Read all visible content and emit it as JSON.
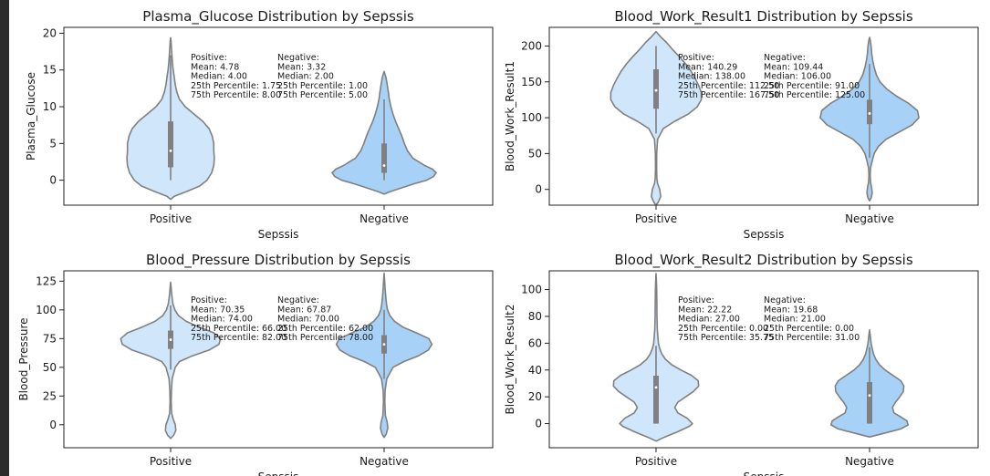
{
  "figure": {
    "background": "#ffffff"
  },
  "colors": {
    "positive": "#cfe6fb",
    "negative": "#a7d1f6",
    "outline": "#808080",
    "box": "#808080",
    "median": "#ffffff"
  },
  "chart_data": [
    {
      "type": "violin",
      "title": "Plasma_Glucose Distribution by Sepssis",
      "xlabel": "Sepssis",
      "ylabel": "Plasma_Glucose",
      "categories": [
        "Positive",
        "Negative"
      ],
      "ylim": [
        -3.4,
        20.8
      ],
      "yticks": [
        0,
        5,
        10,
        15,
        20
      ],
      "violins": [
        {
          "category": "Positive",
          "min": -2.6,
          "max": 19.4,
          "q1": 1.75,
          "median": 4.0,
          "q3": 8.0,
          "whisker_low": 0.0,
          "whisker_high": 17.0,
          "density": [
            [
              -2.6,
              0.0
            ],
            [
              -2.2,
              0.07
            ],
            [
              -1.5,
              0.32
            ],
            [
              -0.8,
              0.56
            ],
            [
              0,
              0.7
            ],
            [
              1,
              0.79
            ],
            [
              2,
              0.83
            ],
            [
              3,
              0.84
            ],
            [
              4,
              0.83
            ],
            [
              5,
              0.83
            ],
            [
              6,
              0.8
            ],
            [
              7,
              0.74
            ],
            [
              8,
              0.62
            ],
            [
              9,
              0.45
            ],
            [
              10,
              0.28
            ],
            [
              11,
              0.17
            ],
            [
              12,
              0.12
            ],
            [
              13,
              0.09
            ],
            [
              14,
              0.07
            ],
            [
              15,
              0.05
            ],
            [
              16,
              0.035
            ],
            [
              17,
              0.025
            ],
            [
              18,
              0.015
            ],
            [
              19,
              0.007
            ],
            [
              19.4,
              0.0
            ]
          ]
        },
        {
          "category": "Negative",
          "min": -1.9,
          "max": 14.8,
          "q1": 1.0,
          "median": 2.0,
          "q3": 5.0,
          "whisker_low": 0.0,
          "whisker_high": 11.0,
          "density": [
            [
              -1.9,
              0.0
            ],
            [
              -1.6,
              0.1
            ],
            [
              -1.0,
              0.35
            ],
            [
              -0.4,
              0.62
            ],
            [
              0,
              0.82
            ],
            [
              0.5,
              0.95
            ],
            [
              1,
              1.0
            ],
            [
              1.5,
              0.93
            ],
            [
              2,
              0.78
            ],
            [
              3,
              0.55
            ],
            [
              4,
              0.45
            ],
            [
              5,
              0.39
            ],
            [
              6,
              0.34
            ],
            [
              7,
              0.28
            ],
            [
              8,
              0.22
            ],
            [
              9,
              0.17
            ],
            [
              10,
              0.13
            ],
            [
              11,
              0.1
            ],
            [
              12,
              0.08
            ],
            [
              13,
              0.06
            ],
            [
              14,
              0.035
            ],
            [
              14.8,
              0.0
            ]
          ]
        }
      ],
      "annotations": {
        "positive": {
          "header": "Positive:",
          "lines": [
            "Mean: 4.78",
            "Median: 4.00",
            "25th Percentile: 1.75",
            "75th Percentile: 8.00"
          ]
        },
        "negative": {
          "header": "Negative:",
          "lines": [
            "Mean: 3.32",
            "Median: 2.00",
            "25th Percentile: 1.00",
            "75th Percentile: 5.00"
          ]
        }
      }
    },
    {
      "type": "violin",
      "title": "Blood_Work_Result1 Distribution by Sepssis",
      "xlabel": "Sepssis",
      "ylabel": "Blood_Work_Result1",
      "categories": [
        "Positive",
        "Negative"
      ],
      "ylim": [
        -22,
        226
      ],
      "yticks": [
        0,
        50,
        100,
        150,
        200
      ],
      "violins": [
        {
          "category": "Positive",
          "min": -22,
          "max": 220,
          "q1": 112.5,
          "median": 138.0,
          "q3": 167.5,
          "whisker_low": 78,
          "whisker_high": 200,
          "density": [
            [
              -22,
              0.0
            ],
            [
              -18,
              0.04
            ],
            [
              -10,
              0.09
            ],
            [
              0,
              0.07
            ],
            [
              8,
              0.03
            ],
            [
              15,
              0.015
            ],
            [
              30,
              0.01
            ],
            [
              50,
              0.012
            ],
            [
              70,
              0.03
            ],
            [
              85,
              0.14
            ],
            [
              95,
              0.36
            ],
            [
              105,
              0.62
            ],
            [
              115,
              0.79
            ],
            [
              125,
              0.87
            ],
            [
              135,
              0.87
            ],
            [
              145,
              0.82
            ],
            [
              155,
              0.75
            ],
            [
              165,
              0.67
            ],
            [
              175,
              0.57
            ],
            [
              185,
              0.45
            ],
            [
              195,
              0.32
            ],
            [
              205,
              0.2
            ],
            [
              212,
              0.1
            ],
            [
              220,
              0.0
            ]
          ]
        },
        {
          "category": "Negative",
          "min": -16,
          "max": 212,
          "q1": 91.0,
          "median": 106.0,
          "q3": 125.0,
          "whisker_low": 44,
          "whisker_high": 175,
          "density": [
            [
              -16,
              0.0
            ],
            [
              -12,
              0.03
            ],
            [
              -5,
              0.05
            ],
            [
              2,
              0.04
            ],
            [
              10,
              0.02
            ],
            [
              20,
              0.012
            ],
            [
              30,
              0.02
            ],
            [
              40,
              0.05
            ],
            [
              50,
              0.09
            ],
            [
              60,
              0.17
            ],
            [
              70,
              0.32
            ],
            [
              80,
              0.57
            ],
            [
              90,
              0.82
            ],
            [
              100,
              0.95
            ],
            [
              110,
              0.92
            ],
            [
              120,
              0.75
            ],
            [
              130,
              0.52
            ],
            [
              140,
              0.33
            ],
            [
              150,
              0.2
            ],
            [
              160,
              0.13
            ],
            [
              170,
              0.09
            ],
            [
              180,
              0.06
            ],
            [
              190,
              0.04
            ],
            [
              200,
              0.03
            ],
            [
              207,
              0.015
            ],
            [
              212,
              0.0
            ]
          ]
        }
      ],
      "annotations": {
        "positive": {
          "header": "Positive:",
          "lines": [
            "Mean: 140.29",
            "Median: 138.00",
            "25th Percentile: 112.50",
            "75th Percentile: 167.50"
          ]
        },
        "negative": {
          "header": "Negative:",
          "lines": [
            "Mean: 109.44",
            "Median: 106.00",
            "25th Percentile: 91.00",
            "75th Percentile: 125.00"
          ]
        }
      }
    },
    {
      "type": "violin",
      "title": "Blood_Pressure Distribution by Sepssis",
      "xlabel": "Sepssis",
      "ylabel": "Blood_Pressure",
      "categories": [
        "Positive",
        "Negative"
      ],
      "ylim": [
        -20,
        134
      ],
      "yticks": [
        0,
        25,
        50,
        75,
        100,
        125
      ],
      "violins": [
        {
          "category": "Positive",
          "min": -12,
          "max": 124,
          "q1": 66.0,
          "median": 74.0,
          "q3": 82.0,
          "whisker_low": 48,
          "whisker_high": 104,
          "density": [
            [
              -12,
              0.0
            ],
            [
              -9,
              0.06
            ],
            [
              -5,
              0.1
            ],
            [
              0,
              0.09
            ],
            [
              5,
              0.05
            ],
            [
              10,
              0.02
            ],
            [
              20,
              0.01
            ],
            [
              30,
              0.015
            ],
            [
              40,
              0.03
            ],
            [
              50,
              0.09
            ],
            [
              55,
              0.17
            ],
            [
              60,
              0.42
            ],
            [
              65,
              0.74
            ],
            [
              70,
              0.93
            ],
            [
              75,
              0.96
            ],
            [
              80,
              0.83
            ],
            [
              85,
              0.55
            ],
            [
              90,
              0.3
            ],
            [
              95,
              0.15
            ],
            [
              100,
              0.08
            ],
            [
              105,
              0.045
            ],
            [
              110,
              0.03
            ],
            [
              115,
              0.018
            ],
            [
              120,
              0.008
            ],
            [
              124,
              0.0
            ]
          ]
        },
        {
          "category": "Negative",
          "min": -11,
          "max": 132,
          "q1": 62.0,
          "median": 70.0,
          "q3": 78.0,
          "whisker_low": 40,
          "whisker_high": 100,
          "density": [
            [
              -11,
              0.0
            ],
            [
              -8,
              0.04
            ],
            [
              -3,
              0.07
            ],
            [
              2,
              0.06
            ],
            [
              8,
              0.025
            ],
            [
              20,
              0.012
            ],
            [
              30,
              0.02
            ],
            [
              40,
              0.05
            ],
            [
              50,
              0.17
            ],
            [
              55,
              0.38
            ],
            [
              60,
              0.66
            ],
            [
              65,
              0.85
            ],
            [
              70,
              0.92
            ],
            [
              75,
              0.86
            ],
            [
              80,
              0.62
            ],
            [
              85,
              0.36
            ],
            [
              90,
              0.2
            ],
            [
              95,
              0.11
            ],
            [
              100,
              0.065
            ],
            [
              105,
              0.045
            ],
            [
              110,
              0.035
            ],
            [
              115,
              0.025
            ],
            [
              120,
              0.018
            ],
            [
              125,
              0.01
            ],
            [
              132,
              0.0
            ]
          ]
        }
      ],
      "annotations": {
        "positive": {
          "header": "Positive:",
          "lines": [
            "Mean: 70.35",
            "Median: 74.00",
            "25th Percentile: 66.00",
            "75th Percentile: 82.00"
          ]
        },
        "negative": {
          "header": "Negative:",
          "lines": [
            "Mean: 67.87",
            "Median: 70.00",
            "25th Percentile: 62.00",
            "75th Percentile: 78.00"
          ]
        }
      }
    },
    {
      "type": "violin",
      "title": "Blood_Work_Result2 Distribution by Sepssis",
      "xlabel": "Sepssis",
      "ylabel": "Blood_Work_Result2",
      "categories": [
        "Positive",
        "Negative"
      ],
      "ylim": [
        -18,
        114
      ],
      "yticks": [
        0,
        20,
        40,
        60,
        80,
        100
      ],
      "violins": [
        {
          "category": "Positive",
          "min": -13,
          "max": 112,
          "q1": 0.0,
          "median": 27.0,
          "q3": 35.75,
          "whisker_low": 0,
          "whisker_high": 58,
          "density": [
            [
              -13,
              0.0
            ],
            [
              -10,
              0.17
            ],
            [
              -6,
              0.42
            ],
            [
              -2,
              0.64
            ],
            [
              0,
              0.7
            ],
            [
              4,
              0.6
            ],
            [
              8,
              0.42
            ],
            [
              12,
              0.36
            ],
            [
              16,
              0.42
            ],
            [
              20,
              0.57
            ],
            [
              24,
              0.72
            ],
            [
              28,
              0.82
            ],
            [
              32,
              0.81
            ],
            [
              36,
              0.68
            ],
            [
              40,
              0.48
            ],
            [
              44,
              0.3
            ],
            [
              48,
              0.18
            ],
            [
              52,
              0.11
            ],
            [
              56,
              0.07
            ],
            [
              60,
              0.045
            ],
            [
              70,
              0.025
            ],
            [
              80,
              0.018
            ],
            [
              90,
              0.015
            ],
            [
              100,
              0.012
            ],
            [
              106,
              0.007
            ],
            [
              112,
              0.0
            ]
          ]
        },
        {
          "category": "Negative",
          "min": -10,
          "max": 70,
          "q1": 0.0,
          "median": 21.0,
          "q3": 31.0,
          "whisker_low": 0,
          "whisker_high": 57,
          "density": [
            [
              -10,
              0.0
            ],
            [
              -7,
              0.3
            ],
            [
              -4,
              0.6
            ],
            [
              -1,
              0.74
            ],
            [
              2,
              0.72
            ],
            [
              5,
              0.6
            ],
            [
              8,
              0.47
            ],
            [
              12,
              0.44
            ],
            [
              16,
              0.5
            ],
            [
              20,
              0.58
            ],
            [
              24,
              0.65
            ],
            [
              28,
              0.66
            ],
            [
              32,
              0.6
            ],
            [
              36,
              0.45
            ],
            [
              40,
              0.3
            ],
            [
              44,
              0.19
            ],
            [
              48,
              0.12
            ],
            [
              52,
              0.075
            ],
            [
              56,
              0.05
            ],
            [
              60,
              0.03
            ],
            [
              65,
              0.015
            ],
            [
              70,
              0.0
            ]
          ]
        }
      ],
      "annotations": {
        "positive": {
          "header": "Positive:",
          "lines": [
            "Mean: 22.22",
            "Median: 27.00",
            "25th Percentile: 0.00",
            "75th Percentile: 35.75"
          ]
        },
        "negative": {
          "header": "Negative:",
          "lines": [
            "Mean: 19.68",
            "Median: 21.00",
            "25th Percentile: 0.00",
            "75th Percentile: 31.00"
          ]
        }
      }
    }
  ]
}
